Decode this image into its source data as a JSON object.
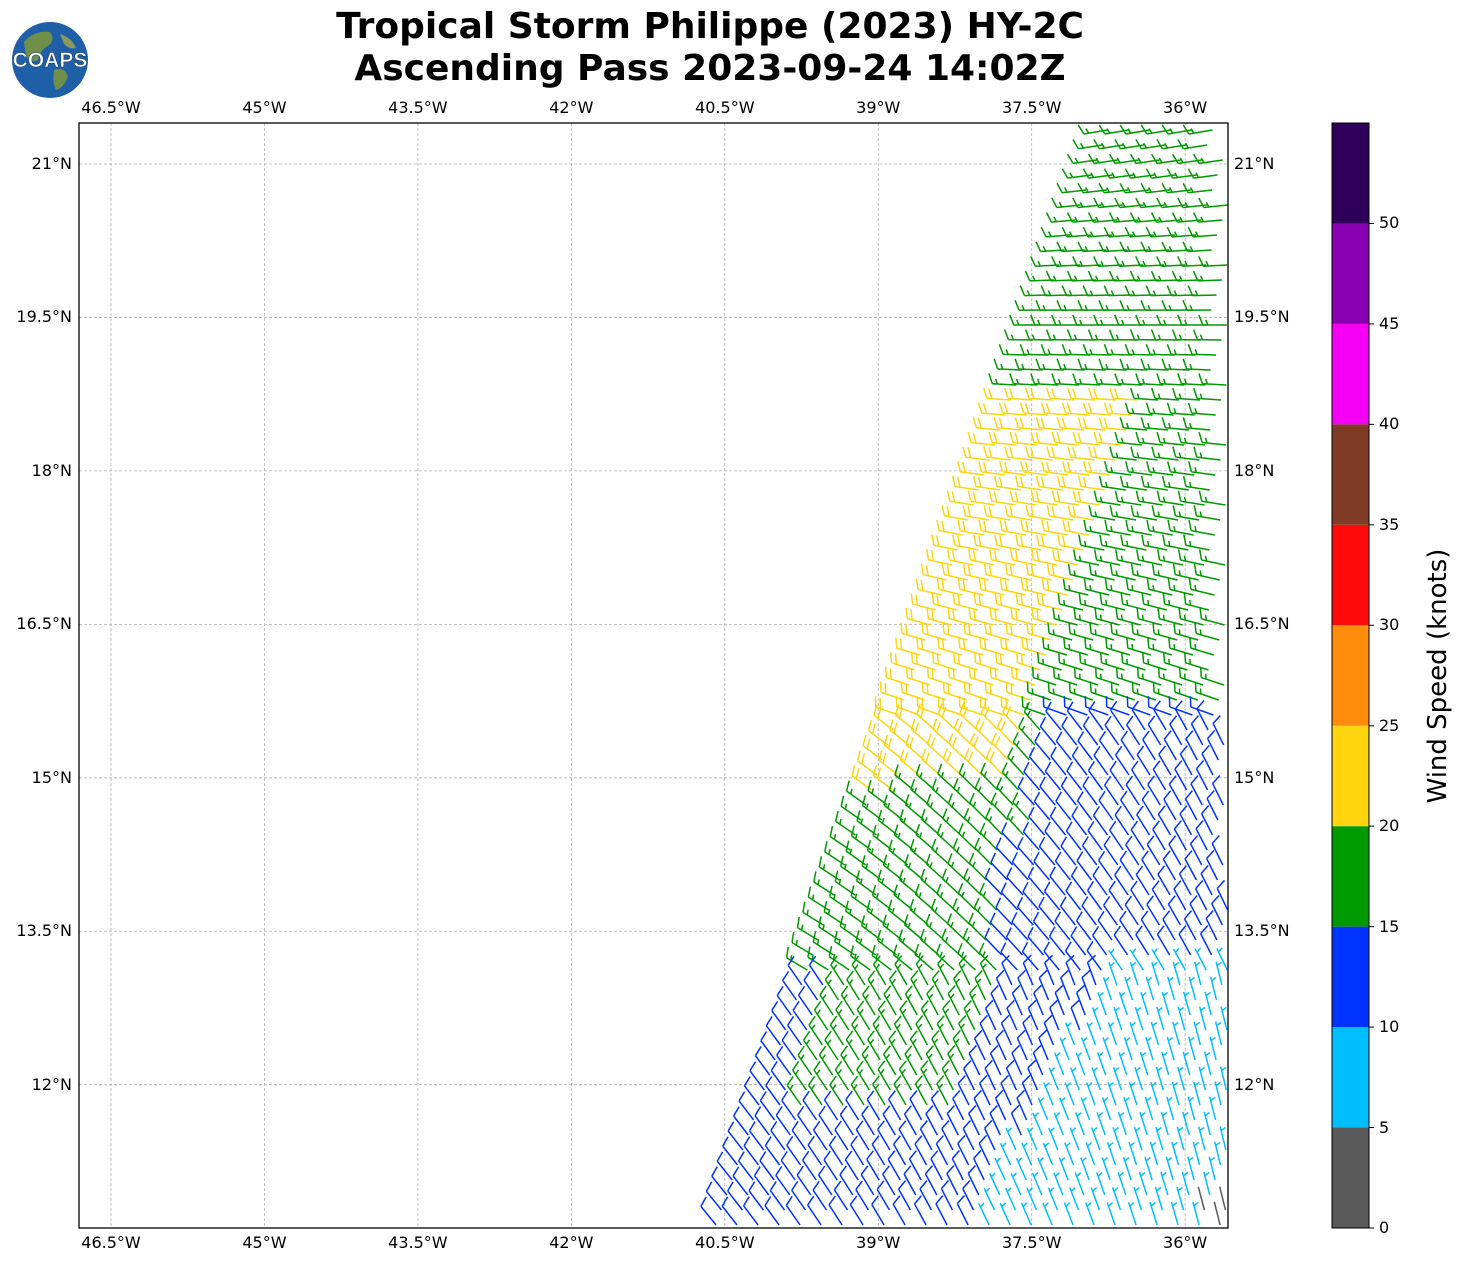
{
  "title": {
    "line1": "Tropical Storm Philippe (2023) HY-2C",
    "line2": "Ascending Pass 2023-09-24 14:02Z"
  },
  "logo": {
    "text": "COAPS"
  },
  "map": {
    "lon_range": [
      -47.0,
      -35.5
    ],
    "lat_range": [
      10.6,
      21.4
    ],
    "lon_ticks": [
      {
        "value": -46.5,
        "label": "46.5°W"
      },
      {
        "value": -45.0,
        "label": "45°W"
      },
      {
        "value": -43.5,
        "label": "43.5°W"
      },
      {
        "value": -42.0,
        "label": "42°W"
      },
      {
        "value": -40.5,
        "label": "40.5°W"
      },
      {
        "value": -39.0,
        "label": "39°W"
      },
      {
        "value": -37.5,
        "label": "37.5°W"
      },
      {
        "value": -36.0,
        "label": "36°W"
      }
    ],
    "lat_ticks": [
      {
        "value": 21.0,
        "label": "21°N"
      },
      {
        "value": 19.5,
        "label": "19.5°N"
      },
      {
        "value": 18.0,
        "label": "18°N"
      },
      {
        "value": 16.5,
        "label": "16.5°N"
      },
      {
        "value": 15.0,
        "label": "15°N"
      },
      {
        "value": 13.5,
        "label": "13.5°N"
      },
      {
        "value": 12.0,
        "label": "12°N"
      }
    ],
    "grid": true
  },
  "colorbar": {
    "label": "Wind Speed (knots)",
    "ticks": [
      "0",
      "5",
      "10",
      "15",
      "20",
      "25",
      "30",
      "35",
      "40",
      "45",
      "50"
    ],
    "bins": [
      {
        "min": 0,
        "max": 5,
        "color": "#595959"
      },
      {
        "min": 5,
        "max": 10,
        "color": "#00bfff"
      },
      {
        "min": 10,
        "max": 15,
        "color": "#0033ff"
      },
      {
        "min": 15,
        "max": 20,
        "color": "#009900"
      },
      {
        "min": 20,
        "max": 25,
        "color": "#ffd510"
      },
      {
        "min": 25,
        "max": 30,
        "color": "#ff8c0a"
      },
      {
        "min": 30,
        "max": 35,
        "color": "#ff0a0a"
      },
      {
        "min": 35,
        "max": 40,
        "color": "#803b26"
      },
      {
        "min": 40,
        "max": 45,
        "color": "#f500f5"
      },
      {
        "min": 45,
        "max": 50,
        "color": "#8800b2"
      },
      {
        "min": 50,
        "max": 55,
        "color": "#2e0059"
      }
    ]
  }
}
